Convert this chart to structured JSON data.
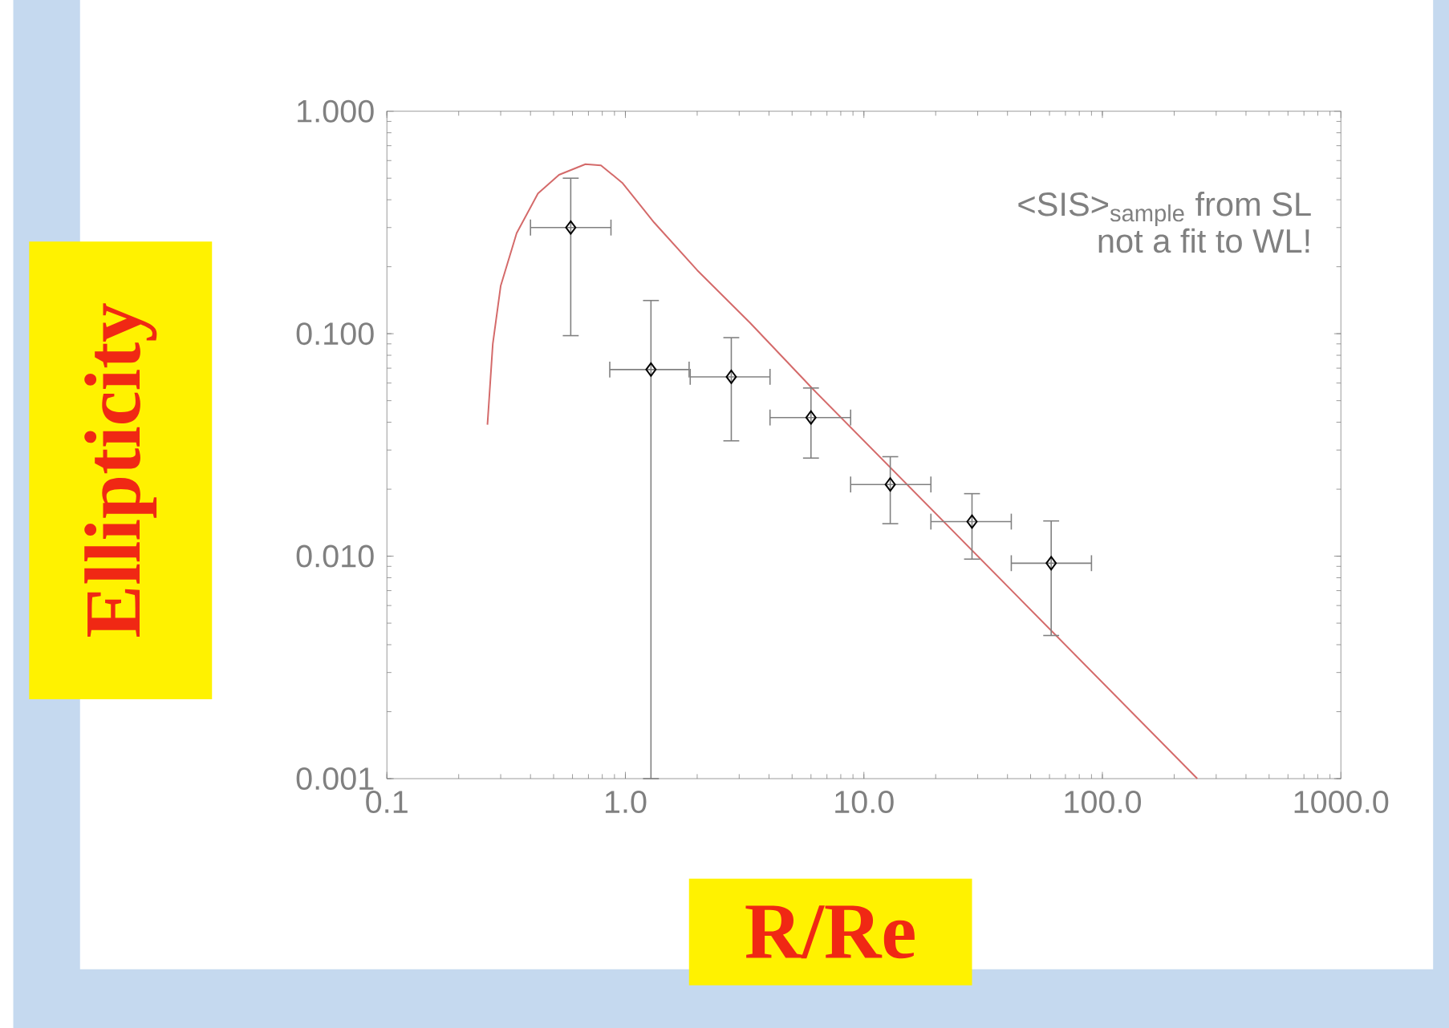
{
  "chart_data": {
    "type": "scatter",
    "xlabel": "R/Re",
    "ylabel": "Ellipticity",
    "log": "xy",
    "xlim": [
      0.1,
      1000
    ],
    "ylim": [
      0.001,
      1
    ],
    "xticks": [
      {
        "value": 0.1,
        "label": "0.1"
      },
      {
        "value": 1,
        "label": "1.0"
      },
      {
        "value": 10,
        "label": "10.0"
      },
      {
        "value": 100,
        "label": "100.0"
      },
      {
        "value": 1000,
        "label": "1000.0"
      }
    ],
    "yticks": [
      {
        "value": 0.001,
        "label": "0.001"
      },
      {
        "value": 0.01,
        "label": "0.010"
      },
      {
        "value": 0.1,
        "label": "0.100"
      },
      {
        "value": 1,
        "label": "1.000"
      }
    ],
    "annotations": [
      "<SIS>$_{sample}$ from SL",
      "not a fit to WL!"
    ],
    "series": [
      {
        "type": "line",
        "color": "#d46a6a",
        "x": [
          0.264,
          0.278,
          0.3,
          0.35,
          0.43,
          0.527,
          0.68,
          0.79,
          0.97,
          1.32,
          2.0,
          3.33,
          6.15,
          250
        ],
        "values": [
          0.039,
          0.09,
          0.164,
          0.283,
          0.427,
          0.518,
          0.578,
          0.571,
          0.477,
          0.316,
          0.193,
          0.112,
          0.056,
          0.001
        ]
      },
      {
        "color": "#000000",
        "marker": "diamond",
        "x": [
          0.59,
          1.28,
          2.78,
          6.0,
          12.9,
          28.4,
          61
        ],
        "values": [
          0.3,
          0.069,
          0.064,
          0.042,
          0.021,
          0.0143,
          0.0093
        ],
        "errors": [
          [
            0.098,
            0.5
          ],
          [
            0.001,
            0.141
          ],
          [
            0.033,
            0.096
          ],
          [
            0.0276,
            0.057
          ],
          [
            0.014,
            0.028
          ],
          [
            0.0097,
            0.0191
          ],
          [
            0.0044,
            0.0144
          ]
        ],
        "xerrors": [
          [
            0.4,
            0.87
          ],
          [
            0.86,
            1.85
          ],
          [
            1.87,
            4.04
          ],
          [
            4.04,
            8.8
          ],
          [
            8.8,
            19.1
          ],
          [
            19.1,
            41.5
          ],
          [
            41.5,
            90
          ]
        ]
      }
    ]
  }
}
